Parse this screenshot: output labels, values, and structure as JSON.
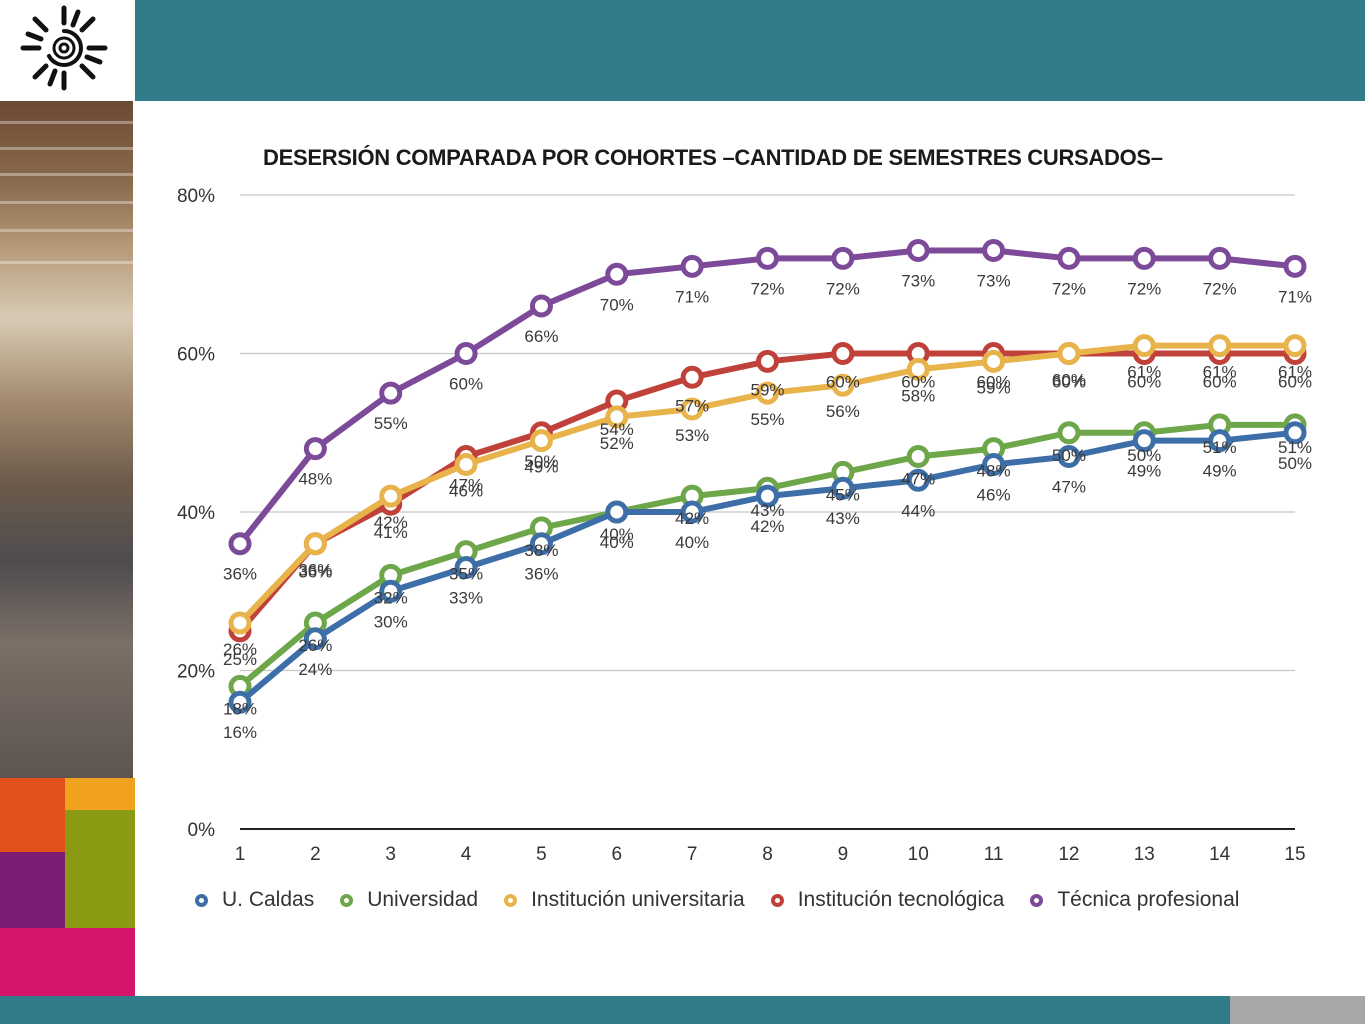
{
  "colors": {
    "header_bar": "#317c89",
    "u_caldas": "#3e6ea8",
    "universidad": "#6ea64a",
    "institucion_universitaria": "#e8b34a",
    "institucion_tecnologica": "#c0403a",
    "tecnica_profesional": "#7c4a98",
    "swatch_orange": "#e2501b",
    "swatch_yellow": "#f0a11e",
    "swatch_purple": "#7b1d72",
    "swatch_olive": "#8a9a13",
    "swatch_magenta": "#d5146b"
  },
  "icons": {
    "logo": "sun-spiral-logo",
    "photo": "students-classroom-photo"
  },
  "chart_data": {
    "type": "line",
    "title": "DESERSIÓN COMPARADA POR COHORTES –CANTIDAD DE SEMESTRES CURSADOS–",
    "x": [
      1,
      2,
      3,
      4,
      5,
      6,
      7,
      8,
      9,
      10,
      11,
      12,
      13,
      14,
      15
    ],
    "y_ticks": [
      "0%",
      "20%",
      "40%",
      "60%",
      "80%"
    ],
    "ylim": [
      0,
      80
    ],
    "grid": true,
    "legend_position": "bottom",
    "series": [
      {
        "name": "U. Caldas",
        "key": "u_caldas",
        "values": [
          16,
          24,
          30,
          33,
          36,
          40,
          40,
          42,
          43,
          44,
          46,
          47,
          49,
          49,
          50
        ]
      },
      {
        "name": "Universidad",
        "key": "universidad",
        "values": [
          18,
          26,
          32,
          35,
          38,
          40,
          42,
          43,
          45,
          47,
          48,
          50,
          50,
          51,
          51
        ]
      },
      {
        "name": "Institución universitaria",
        "key": "institucion_universitaria",
        "values": [
          26,
          36,
          42,
          46,
          49,
          52,
          53,
          55,
          56,
          58,
          59,
          60,
          61,
          61,
          61
        ]
      },
      {
        "name": "Institución tecnológica",
        "key": "institucion_tecnologica",
        "values": [
          25,
          36,
          41,
          47,
          50,
          54,
          57,
          59,
          60,
          60,
          60,
          60,
          60,
          60,
          60
        ]
      },
      {
        "name": "Técnica profesional",
        "key": "tecnica_profesional",
        "values": [
          36,
          48,
          55,
          60,
          66,
          70,
          71,
          72,
          72,
          73,
          73,
          72,
          72,
          72,
          71
        ]
      }
    ]
  }
}
